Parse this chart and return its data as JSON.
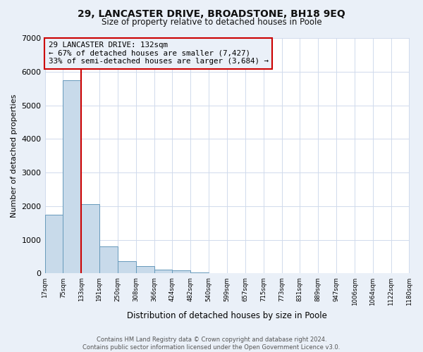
{
  "title_line1": "29, LANCASTER DRIVE, BROADSTONE, BH18 9EQ",
  "title_line2": "Size of property relative to detached houses in Poole",
  "xlabel": "Distribution of detached houses by size in Poole",
  "ylabel": "Number of detached properties",
  "bar_edges": [
    17,
    75,
    133,
    191,
    250,
    308,
    366,
    424,
    482,
    540,
    599,
    657,
    715,
    773,
    831,
    889,
    947,
    1006,
    1064,
    1122,
    1180
  ],
  "bar_heights": [
    1750,
    5750,
    2050,
    800,
    370,
    220,
    115,
    85,
    28,
    18,
    8,
    4,
    4,
    0,
    0,
    0,
    0,
    0,
    0,
    0
  ],
  "bar_color": "#c8daea",
  "bar_edge_color": "#6699bb",
  "property_line_x": 133,
  "property_line_color": "#cc0000",
  "annotation_text": "29 LANCASTER DRIVE: 132sqm\n← 67% of detached houses are smaller (7,427)\n33% of semi-detached houses are larger (3,684) →",
  "ylim": [
    0,
    7000
  ],
  "yticks": [
    0,
    1000,
    2000,
    3000,
    4000,
    5000,
    6000,
    7000
  ],
  "xtick_labels": [
    "17sqm",
    "75sqm",
    "133sqm",
    "191sqm",
    "250sqm",
    "308sqm",
    "366sqm",
    "424sqm",
    "482sqm",
    "540sqm",
    "599sqm",
    "657sqm",
    "715sqm",
    "773sqm",
    "831sqm",
    "889sqm",
    "947sqm",
    "1006sqm",
    "1064sqm",
    "1122sqm",
    "1180sqm"
  ],
  "grid_color": "#d0daec",
  "footnote": "Contains HM Land Registry data © Crown copyright and database right 2024.\nContains public sector information licensed under the Open Government Licence v3.0.",
  "bg_color": "#eaf0f8",
  "plot_bg_color": "#ffffff"
}
